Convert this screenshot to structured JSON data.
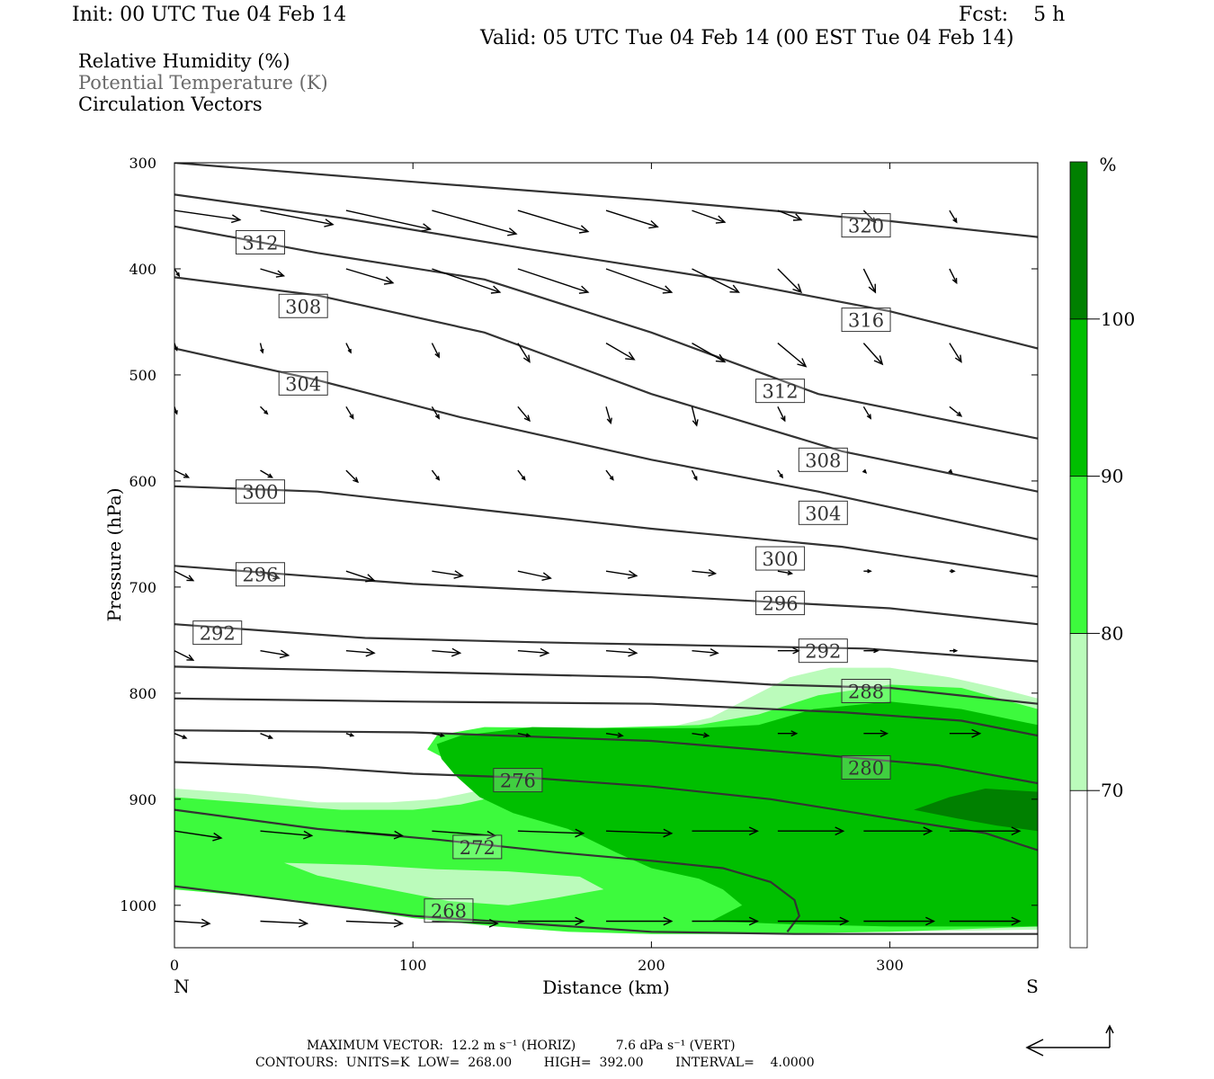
{
  "header": {
    "init": "Init: 00 UTC Tue 04 Feb 14",
    "fcst": "Fcst:    5 h",
    "valid": "Valid: 05 UTC Tue 04 Feb 14 (00 EST Tue 04 Feb 14)"
  },
  "legend": [
    "Relative Humidity (%)",
    "Potential Temperature (K)",
    "Circulation Vectors"
  ],
  "footer": {
    "line1": "MAXIMUM VECTOR:  12.2 m s⁻¹ (HORIZ)          7.6 dPa s⁻¹ (VERT)",
    "line2": "CONTOURS:  UNITS=K  LOW=  268.00        HIGH=  392.00        INTERVAL=    4.0000"
  },
  "colors": {
    "rh_70_80": "#bbfbbb",
    "rh_80_90": "#3dfa3d",
    "rh_90_100": "#00bf00",
    "rh_100": "#008000",
    "theta_line": "#333333"
  },
  "chart_data": {
    "type": "cross-section",
    "xlabel": "Distance (km)",
    "ylabel": "Pressure (hPa)",
    "xlim": [
      0,
      362
    ],
    "ylim": [
      1040,
      300
    ],
    "xticks": [
      0,
      100,
      200,
      300
    ],
    "yticks": [
      300,
      400,
      500,
      600,
      700,
      800,
      900,
      1000
    ],
    "endpoints": {
      "left": "N",
      "right": "S"
    },
    "colorbar": {
      "unit": "%",
      "levels": [
        70,
        80,
        90,
        100
      ]
    },
    "rh_fill": [
      {
        "level": "70-80",
        "points": [
          [
            0,
            890
          ],
          [
            30,
            895
          ],
          [
            60,
            903
          ],
          [
            90,
            903
          ],
          [
            110,
            900
          ],
          [
            125,
            893
          ],
          [
            140,
            878
          ],
          [
            150,
            868
          ],
          [
            162,
            860
          ],
          [
            172,
            850
          ],
          [
            185,
            845
          ],
          [
            200,
            836
          ],
          [
            225,
            823
          ],
          [
            245,
            800
          ],
          [
            258,
            785
          ],
          [
            275,
            776
          ],
          [
            300,
            776
          ],
          [
            325,
            785
          ],
          [
            345,
            795
          ],
          [
            362,
            805
          ],
          [
            362,
            1023
          ],
          [
            300,
            1025
          ],
          [
            240,
            1027
          ],
          [
            200,
            1027
          ],
          [
            165,
            1025
          ],
          [
            135,
            1020
          ],
          [
            100,
            1012
          ],
          [
            50,
            995
          ],
          [
            0,
            985
          ]
        ]
      },
      {
        "level": "80-90",
        "points": [
          [
            0,
            898
          ],
          [
            40,
            905
          ],
          [
            70,
            910
          ],
          [
            100,
            910
          ],
          [
            120,
            905
          ],
          [
            130,
            900
          ],
          [
            140,
            893
          ],
          [
            128,
            880
          ],
          [
            120,
            870
          ],
          [
            112,
            860
          ],
          [
            106,
            853
          ],
          [
            110,
            840
          ],
          [
            130,
            832
          ],
          [
            175,
            833
          ],
          [
            220,
            830
          ],
          [
            245,
            820
          ],
          [
            270,
            802
          ],
          [
            300,
            792
          ],
          [
            330,
            795
          ],
          [
            362,
            815
          ],
          [
            362,
            1020
          ],
          [
            300,
            1025
          ],
          [
            240,
            1027
          ],
          [
            200,
            1027
          ],
          [
            165,
            1025
          ],
          [
            135,
            1020
          ],
          [
            100,
            1012
          ],
          [
            50,
            995
          ],
          [
            0,
            985
          ]
        ]
      },
      {
        "level": "80-90 hole",
        "points": [
          [
            46,
            960
          ],
          [
            80,
            962
          ],
          [
            110,
            966
          ],
          [
            140,
            968
          ],
          [
            170,
            973
          ],
          [
            180,
            985
          ],
          [
            160,
            993
          ],
          [
            140,
            1000
          ],
          [
            115,
            996
          ],
          [
            90,
            985
          ],
          [
            60,
            972
          ]
        ]
      },
      {
        "level": "90-100",
        "points": [
          [
            110,
            848
          ],
          [
            120,
            840
          ],
          [
            150,
            832
          ],
          [
            180,
            833
          ],
          [
            220,
            833
          ],
          [
            245,
            830
          ],
          [
            268,
            815
          ],
          [
            300,
            808
          ],
          [
            330,
            815
          ],
          [
            362,
            830
          ],
          [
            362,
            1020
          ],
          [
            300,
            1020
          ],
          [
            260,
            1018
          ],
          [
            225,
            1015
          ],
          [
            238,
            1000
          ],
          [
            230,
            985
          ],
          [
            220,
            975
          ],
          [
            200,
            965
          ],
          [
            185,
            950
          ],
          [
            165,
            928
          ],
          [
            142,
            913
          ],
          [
            128,
            898
          ],
          [
            118,
            878
          ],
          [
            112,
            862
          ]
        ]
      },
      {
        "level": "100+",
        "points": [
          [
            310,
            910
          ],
          [
            325,
            898
          ],
          [
            340,
            890
          ],
          [
            362,
            893
          ],
          [
            362,
            930
          ],
          [
            345,
            925
          ],
          [
            328,
            918
          ]
        ]
      }
    ],
    "theta_isentropes": [
      {
        "K": 268,
        "points": [
          [
            0,
            982
          ],
          [
            100,
            1010
          ],
          [
            200,
            1025
          ],
          [
            260,
            1027
          ],
          [
            362,
            1027
          ]
        ]
      },
      {
        "K": 272,
        "points": [
          [
            0,
            910
          ],
          [
            60,
            928
          ],
          [
            110,
            938
          ],
          [
            160,
            950
          ],
          [
            200,
            958
          ],
          [
            230,
            965
          ],
          [
            250,
            978
          ],
          [
            260,
            995
          ],
          [
            262,
            1010
          ],
          [
            257,
            1025
          ]
        ]
      },
      {
        "K": 276,
        "points": [
          [
            0,
            865
          ],
          [
            60,
            870
          ],
          [
            100,
            876
          ],
          [
            150,
            880
          ],
          [
            200,
            888
          ],
          [
            250,
            900
          ],
          [
            300,
            918
          ],
          [
            340,
            932
          ],
          [
            362,
            948
          ]
        ]
      },
      {
        "K": 280,
        "points": [
          [
            0,
            835
          ],
          [
            100,
            837
          ],
          [
            200,
            845
          ],
          [
            270,
            858
          ],
          [
            320,
            868
          ],
          [
            362,
            885
          ]
        ]
      },
      {
        "K": 284,
        "points": [
          [
            0,
            805
          ],
          [
            100,
            808
          ],
          [
            200,
            810
          ],
          [
            280,
            818
          ],
          [
            330,
            826
          ],
          [
            362,
            840
          ]
        ]
      },
      {
        "K": 288,
        "points": [
          [
            0,
            775
          ],
          [
            100,
            780
          ],
          [
            200,
            785
          ],
          [
            250,
            792
          ],
          [
            300,
            795
          ],
          [
            362,
            810
          ]
        ]
      },
      {
        "K": 292,
        "points": [
          [
            0,
            735
          ],
          [
            80,
            748
          ],
          [
            150,
            752
          ],
          [
            220,
            755
          ],
          [
            290,
            758
          ],
          [
            362,
            770
          ]
        ]
      },
      {
        "K": 296,
        "points": [
          [
            0,
            680
          ],
          [
            100,
            697
          ],
          [
            200,
            708
          ],
          [
            300,
            720
          ],
          [
            362,
            735
          ]
        ]
      },
      {
        "K": 300,
        "points": [
          [
            0,
            605
          ],
          [
            60,
            610
          ],
          [
            120,
            625
          ],
          [
            200,
            645
          ],
          [
            280,
            662
          ],
          [
            362,
            690
          ]
        ]
      },
      {
        "K": 304,
        "points": [
          [
            0,
            475
          ],
          [
            60,
            505
          ],
          [
            120,
            540
          ],
          [
            200,
            580
          ],
          [
            270,
            610
          ],
          [
            362,
            655
          ]
        ]
      },
      {
        "K": 308,
        "points": [
          [
            0,
            408
          ],
          [
            60,
            425
          ],
          [
            130,
            460
          ],
          [
            200,
            518
          ],
          [
            280,
            572
          ],
          [
            362,
            610
          ]
        ]
      },
      {
        "K": 312,
        "points": [
          [
            0,
            360
          ],
          [
            60,
            385
          ],
          [
            130,
            410
          ],
          [
            200,
            460
          ],
          [
            270,
            518
          ],
          [
            362,
            560
          ]
        ]
      },
      {
        "K": 316,
        "points": [
          [
            0,
            330
          ],
          [
            70,
            352
          ],
          [
            150,
            382
          ],
          [
            230,
            410
          ],
          [
            300,
            440
          ],
          [
            362,
            475
          ]
        ]
      },
      {
        "K": 320,
        "points": [
          [
            0,
            300
          ],
          [
            100,
            318
          ],
          [
            200,
            335
          ],
          [
            300,
            355
          ],
          [
            362,
            370
          ]
        ]
      }
    ],
    "theta_labels": [
      {
        "K": "268",
        "x": 115,
        "p": 1005
      },
      {
        "K": "272",
        "x": 127,
        "p": 945
      },
      {
        "K": "276",
        "x": 144,
        "p": 882
      },
      {
        "K": "280",
        "x": 290,
        "p": 870
      },
      {
        "K": "288",
        "x": 290,
        "p": 798
      },
      {
        "K": "292",
        "x": 272,
        "p": 760
      },
      {
        "K": "292",
        "x": 18,
        "p": 743
      },
      {
        "K": "296",
        "x": 254,
        "p": 715
      },
      {
        "K": "296",
        "x": 36,
        "p": 688
      },
      {
        "K": "300",
        "x": 254,
        "p": 673
      },
      {
        "K": "300",
        "x": 36,
        "p": 610
      },
      {
        "K": "304",
        "x": 272,
        "p": 630
      },
      {
        "K": "304",
        "x": 54,
        "p": 508
      },
      {
        "K": "308",
        "x": 272,
        "p": 580
      },
      {
        "K": "308",
        "x": 54,
        "p": 435
      },
      {
        "K": "312",
        "x": 254,
        "p": 515
      },
      {
        "K": "312",
        "x": 36,
        "p": 375
      },
      {
        "K": "316",
        "x": 290,
        "p": 448
      },
      {
        "K": "320",
        "x": 290,
        "p": 359
      }
    ],
    "vector_x": [
      0,
      36,
      72,
      108,
      144,
      181,
      217,
      253,
      289,
      325
    ],
    "vector_rows": [
      {
        "p": 345,
        "u": [
          28,
          31,
          36,
          36,
          30,
          22,
          14,
          10,
          5,
          3
        ],
        "v": [
          4,
          6,
          8,
          10,
          9,
          7,
          5,
          4,
          5,
          5
        ]
      },
      {
        "p": 400,
        "u": [
          2,
          10,
          20,
          29,
          30,
          28,
          20,
          10,
          5,
          3
        ],
        "v": [
          3,
          3,
          6,
          10,
          10,
          10,
          10,
          10,
          10,
          6
        ]
      },
      {
        "p": 470,
        "u": [
          1,
          1,
          2,
          3,
          5,
          12,
          14,
          12,
          8,
          5
        ],
        "v": [
          3,
          4,
          4,
          6,
          8,
          7,
          8,
          10,
          9,
          8
        ]
      },
      {
        "p": 530,
        "u": [
          1,
          3,
          3,
          3,
          5,
          2,
          2,
          3,
          3,
          5
        ],
        "v": [
          3,
          3,
          5,
          5,
          6,
          7,
          8,
          6,
          5,
          4
        ]
      },
      {
        "p": 590,
        "u": [
          6,
          5,
          5,
          3,
          3,
          3,
          2,
          2,
          1,
          1
        ],
        "v": [
          3,
          3,
          5,
          4,
          4,
          4,
          4,
          3,
          1,
          1
        ]
      },
      {
        "p": 685,
        "u": [
          8,
          8,
          12,
          13,
          14,
          13,
          10,
          6,
          3,
          2
        ],
        "v": [
          4,
          3,
          4,
          2,
          3,
          2,
          1,
          1,
          0,
          0
        ]
      },
      {
        "p": 760,
        "u": [
          8,
          12,
          12,
          12,
          13,
          13,
          11,
          9,
          6,
          3
        ],
        "v": [
          4,
          2,
          1,
          1,
          1,
          1,
          1,
          0,
          0,
          0
        ]
      },
      {
        "p": 838,
        "u": [
          5,
          5,
          3,
          5,
          5,
          7,
          7,
          8,
          10,
          13
        ],
        "v": [
          2,
          2,
          1,
          1,
          1,
          1,
          1,
          0,
          0,
          0
        ]
      },
      {
        "p": 930,
        "u": [
          20,
          22,
          24,
          27,
          28,
          28,
          28,
          28,
          29,
          30
        ],
        "v": [
          3,
          2,
          2,
          2,
          1,
          1,
          0,
          0,
          0,
          0
        ]
      },
      {
        "p": 1015,
        "u": [
          15,
          20,
          24,
          28,
          28,
          28,
          28,
          30,
          30,
          30
        ],
        "v": [
          1,
          1,
          1,
          1,
          0,
          0,
          0,
          0,
          0,
          0
        ]
      }
    ],
    "reference_vector": {
      "label": "MAXIMUM VECTOR"
    }
  }
}
